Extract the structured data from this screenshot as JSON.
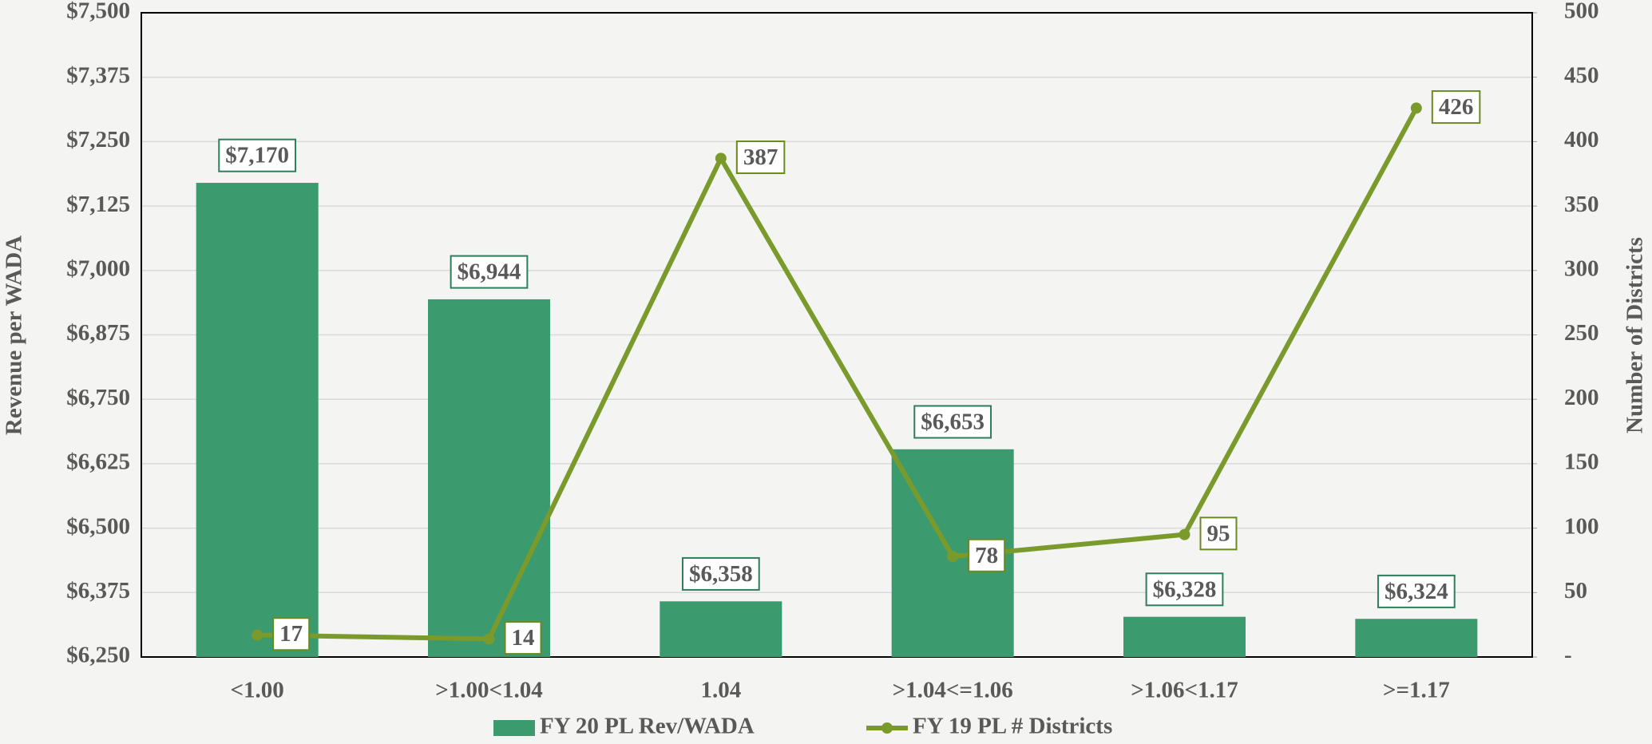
{
  "chart_data": {
    "type": "bar",
    "categories": [
      "<1.00",
      ">1.00<1.04",
      "1.04",
      ">1.04<=1.06",
      ">1.06<1.17",
      ">=1.17"
    ],
    "series": [
      {
        "name": "FY 20 PL Rev/WADA",
        "type": "bar",
        "color": "#3c9a6f",
        "axis": "y",
        "values": [
          7170,
          6944,
          6358,
          6653,
          6328,
          6324
        ],
        "value_labels": [
          "$7,170",
          "$6,944",
          "$6,358",
          "$6,653",
          "$6,328",
          "$6,324"
        ]
      },
      {
        "name": "FY 19 PL # Districts",
        "type": "line",
        "color": "#7a9a2c",
        "axis": "y2",
        "values": [
          17,
          14,
          387,
          78,
          95,
          426
        ]
      }
    ],
    "y_label": "Revenue per WADA",
    "y2_label": "Number of Districts",
    "ylim": [
      6250,
      7500
    ],
    "yticks": [
      {
        "value": 6250,
        "label": "$6,250"
      },
      {
        "value": 6375,
        "label": "$6,375"
      },
      {
        "value": 6500,
        "label": "$6,500"
      },
      {
        "value": 6625,
        "label": "$6,625"
      },
      {
        "value": 6750,
        "label": "$6,750"
      },
      {
        "value": 6875,
        "label": "$6,875"
      },
      {
        "value": 7000,
        "label": "$7,000"
      },
      {
        "value": 7125,
        "label": "$7,125"
      },
      {
        "value": 7250,
        "label": "$7,250"
      },
      {
        "value": 7375,
        "label": "$7,375"
      },
      {
        "value": 7500,
        "label": "$7,500"
      }
    ],
    "y2lim": [
      0,
      500
    ],
    "y2ticks": [
      {
        "value": 0,
        "label": "-"
      },
      50,
      100,
      150,
      200,
      250,
      300,
      350,
      400,
      450,
      500
    ],
    "grid": true,
    "legend": "bottom"
  }
}
